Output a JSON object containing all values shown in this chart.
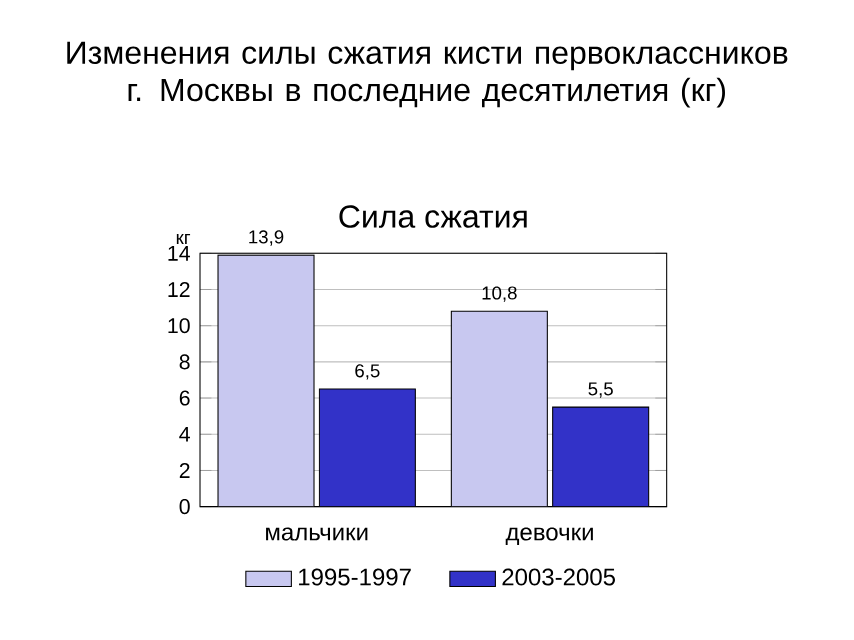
{
  "chart_data": {
    "type": "bar",
    "title": "Изменения силы сжатия кисти первоклассников г. Москвы в последние десятилетия (кг)",
    "subtitle": "Сила сжатия",
    "ylabel": "кг",
    "categories": [
      "мальчики",
      "девочки"
    ],
    "series": [
      {
        "name": "1995-1997",
        "color": "#c8c8f0",
        "values": [
          13.9,
          10.8
        ],
        "value_labels": [
          "13,9",
          "10,8"
        ]
      },
      {
        "name": "2003-2005",
        "color": "#3232c8",
        "values": [
          6.5,
          5.5
        ],
        "value_labels": [
          "6,5",
          "5,5"
        ]
      }
    ],
    "ylim": [
      0,
      14
    ],
    "yticks": [
      0,
      2,
      4,
      6,
      8,
      10,
      12,
      14
    ],
    "grid": "y",
    "legend": "bottom"
  }
}
